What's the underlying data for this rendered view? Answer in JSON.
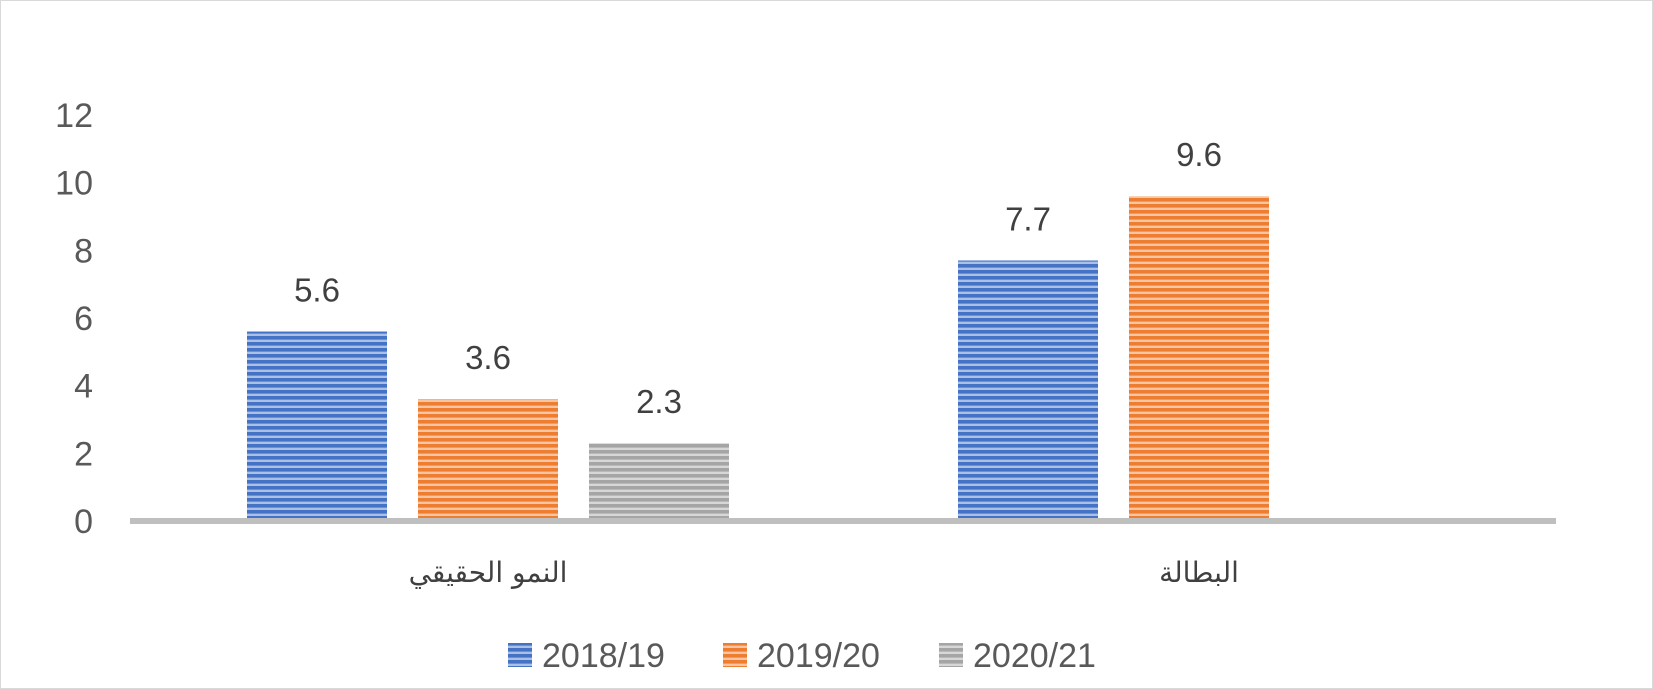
{
  "chart_data": {
    "type": "bar",
    "categories": [
      "النمو الحقيقي",
      "البطالة"
    ],
    "series": [
      {
        "name": "2018/19",
        "values": [
          5.6,
          7.7
        ],
        "color": "#4472c4"
      },
      {
        "name": "2019/20",
        "values": [
          3.6,
          9.6
        ],
        "color": "#ed7d31"
      },
      {
        "name": "2020/21",
        "values": [
          2.3,
          null
        ],
        "color": "#a5a5a5"
      }
    ],
    "data_labels": [
      [
        "5.6",
        "7.7"
      ],
      [
        "3.6",
        "9.6"
      ],
      [
        "2.3",
        ""
      ]
    ],
    "yticks": [
      "0",
      "2",
      "4",
      "6",
      "8",
      "10",
      "12"
    ],
    "ylim": [
      0,
      12
    ],
    "grid": false,
    "legend_position": "bottom",
    "bar_fill": "horizontal-stripes"
  }
}
